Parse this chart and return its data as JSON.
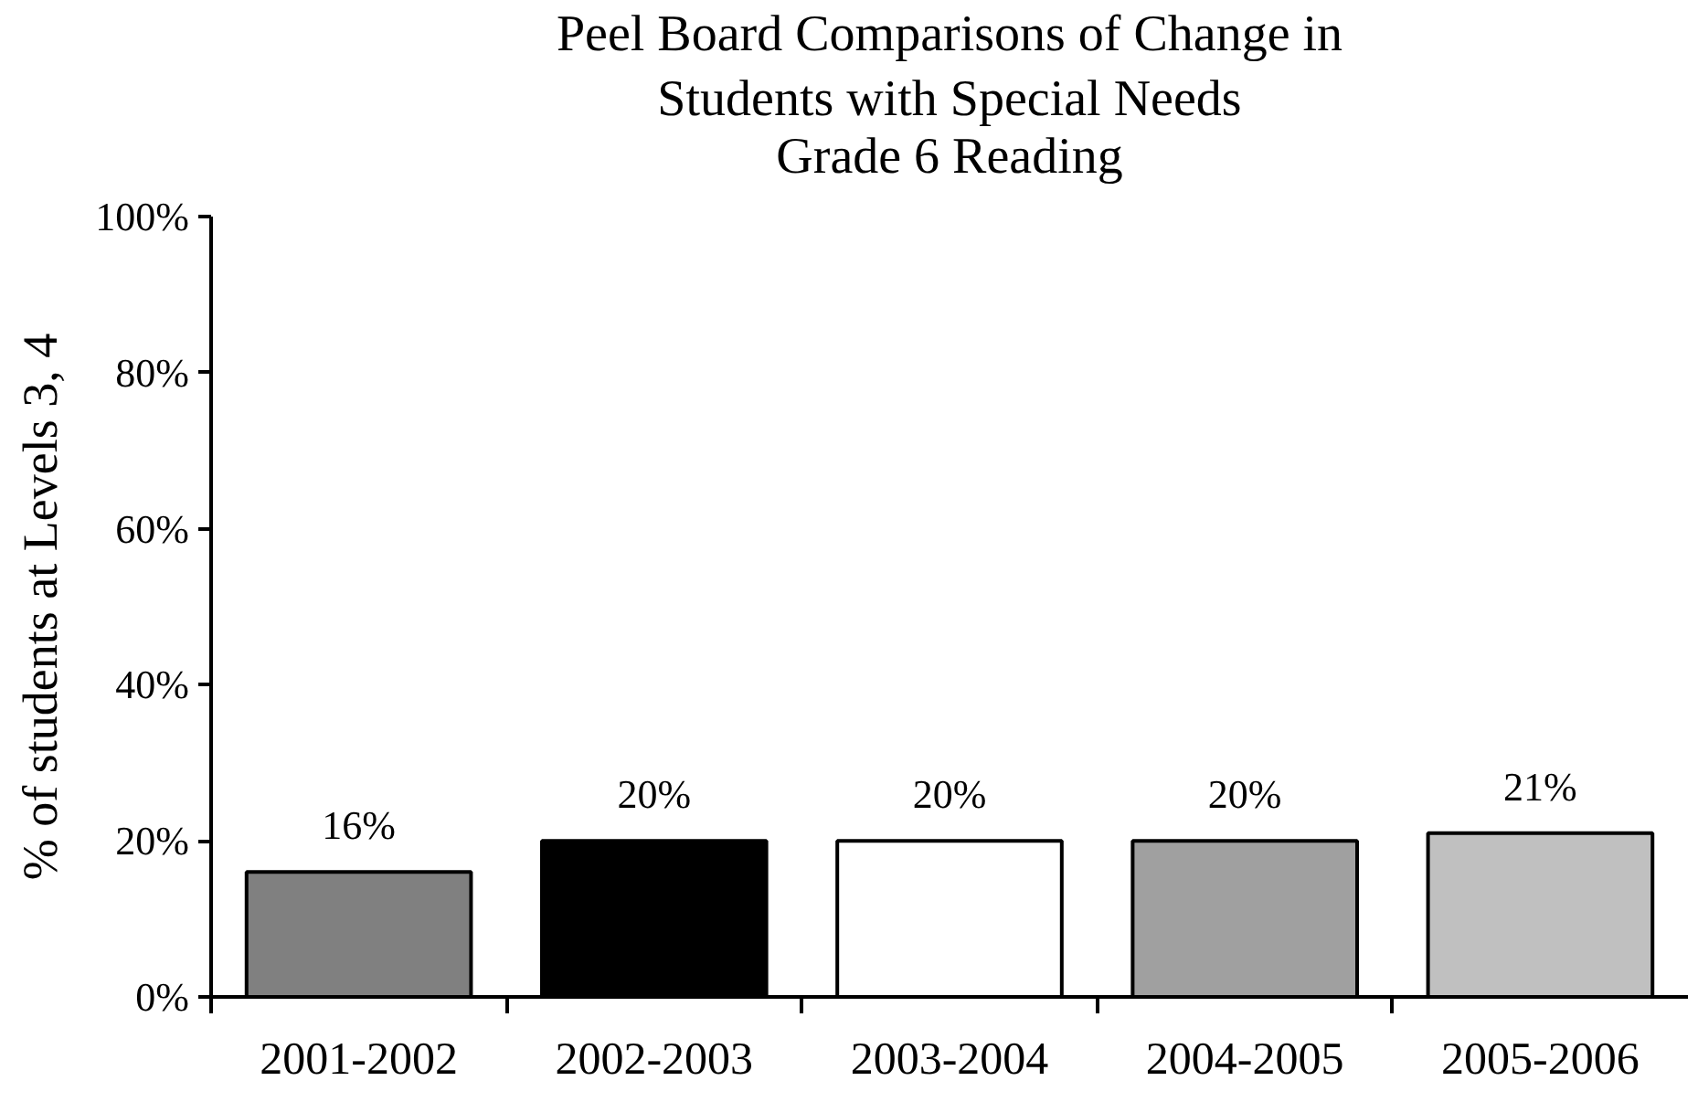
{
  "chart_data": {
    "type": "bar",
    "title": "Peel Board Comparisons of Change in Students with Special Needs",
    "subtitle": "Grade 6 Reading",
    "ylabel": "% of students at Levels 3, 4",
    "categories": [
      "2001-2002",
      "2002-2003",
      "2003-2004",
      "2004-2005",
      "2005-2006"
    ],
    "values": [
      16,
      20,
      20,
      20,
      21
    ],
    "colors": [
      "#808080",
      "#000000",
      "#ffffff",
      "#a0a0a0",
      "#c0c0c0"
    ],
    "value_labels": [
      "16%",
      "20%",
      "20%",
      "20%",
      "21%"
    ],
    "ylim": [
      0,
      100
    ],
    "yticks": [
      {
        "value": 0,
        "label": "0%"
      },
      {
        "value": 20,
        "label": "20%"
      },
      {
        "value": 40,
        "label": "40%"
      },
      {
        "value": 60,
        "label": "60%"
      },
      {
        "value": 80,
        "label": "80%"
      },
      {
        "value": 100,
        "label": "100%"
      }
    ]
  }
}
